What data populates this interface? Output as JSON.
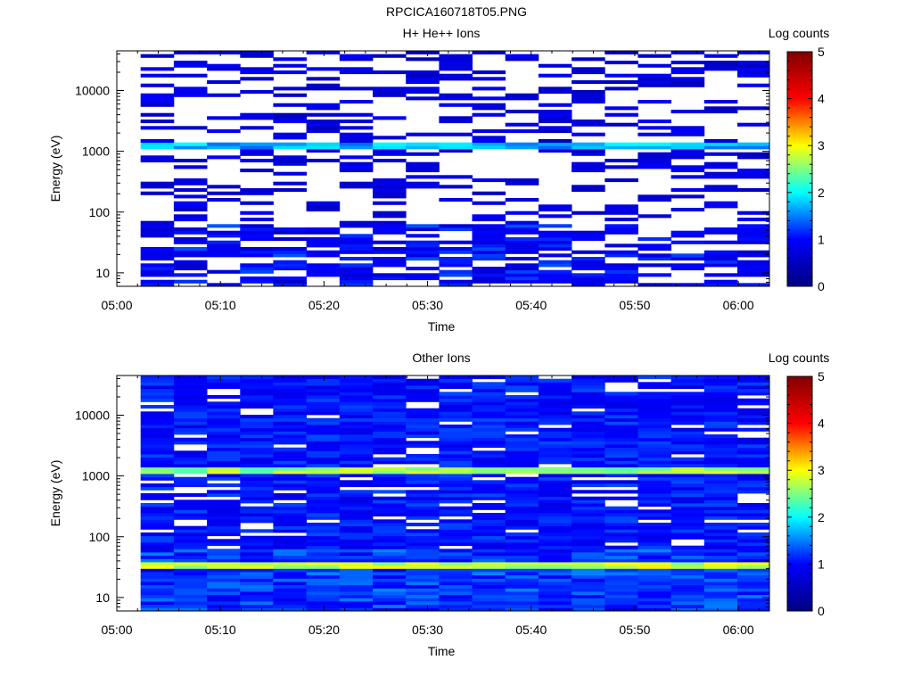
{
  "figure_title": "RPCICA160718T05.PNG",
  "colorscale": {
    "stops": [
      "#000080",
      "#0000ff",
      "#00ffff",
      "#ffff00",
      "#ff0000",
      "#800000"
    ]
  },
  "chart_data": [
    {
      "type": "heatmap",
      "title": "H+ He++ Ions",
      "xlabel": "Time",
      "ylabel": "Energy (eV)",
      "xticks": [
        "05:00",
        "05:10",
        "05:20",
        "05:30",
        "05:40",
        "05:50",
        "06:00"
      ],
      "xlim_minutes": [
        0,
        63
      ],
      "yscale": "log",
      "ylim": [
        6,
        45000
      ],
      "yticks": [
        "10",
        "100",
        "1000",
        "10000"
      ],
      "colorbar": {
        "label": "Log counts",
        "range": [
          0,
          5
        ],
        "ticks": [
          "0",
          "1",
          "2",
          "3",
          "4",
          "5"
        ]
      },
      "time_bins": 19,
      "energy_bins": 72,
      "data_start_minutes": 2.3,
      "bin_minutes": 3.2,
      "fill_fraction": 0.33,
      "band_energies_eV": [
        1200
      ],
      "band_levels": [
        1.7
      ],
      "base_level": 0.5,
      "low_energy_boost": 0.4,
      "seed": 17
    },
    {
      "type": "heatmap",
      "title": "Other Ions",
      "xlabel": "Time",
      "ylabel": "Energy (eV)",
      "xticks": [
        "05:00",
        "05:10",
        "05:20",
        "05:30",
        "05:40",
        "05:50",
        "06:00"
      ],
      "xlim_minutes": [
        0,
        63
      ],
      "yscale": "log",
      "ylim": [
        6,
        45000
      ],
      "yticks": [
        "10",
        "100",
        "1000",
        "10000"
      ],
      "colorbar": {
        "label": "Log counts",
        "range": [
          0,
          5
        ],
        "ticks": [
          "0",
          "1",
          "2",
          "3",
          "4",
          "5"
        ]
      },
      "time_bins": 19,
      "energy_bins": 72,
      "data_start_minutes": 2.3,
      "bin_minutes": 3.2,
      "fill_fraction": 0.9,
      "band_energies_eV": [
        1200,
        33
      ],
      "band_levels": [
        2.6,
        2.8
      ],
      "base_level": 0.8,
      "low_energy_boost": 0.3,
      "seed": 29
    }
  ]
}
